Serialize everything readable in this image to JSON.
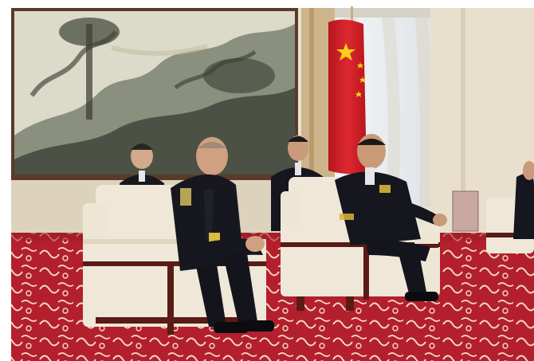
{
  "photo": {
    "place_cards": [
      {
        "text": ""
      },
      {
        "text": ""
      }
    ]
  },
  "colors": {
    "flag_red": "#d4202a",
    "flag_star": "#f6d21a",
    "carpet_red": "#b41f2d",
    "sofa_white": "#efe8d8",
    "wood_trim": "#5a1b16",
    "uniform_navy": "#15161e",
    "painting_paper": "#dcdac8",
    "wall_cream": "#ece6d6"
  }
}
